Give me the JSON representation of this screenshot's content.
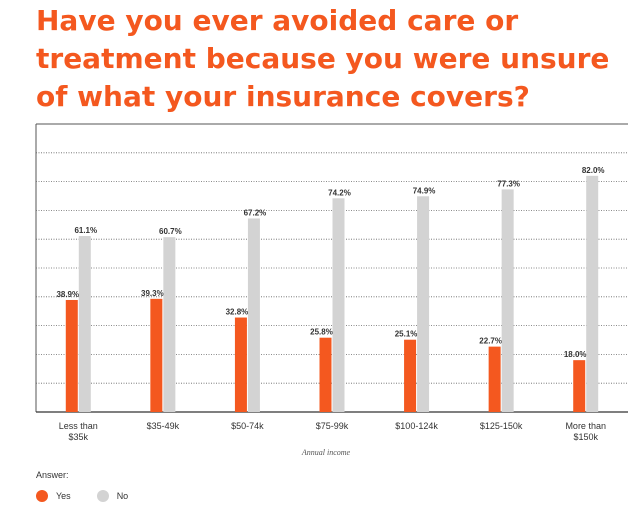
{
  "chart_data": {
    "type": "bar",
    "title": "Have you ever avoided care or treatment because you were unsure of what your insurance covers?",
    "xlabel": "Annual income",
    "ylabel": "",
    "ylim": [
      0,
      100
    ],
    "categories": [
      [
        "Less than",
        "$35k"
      ],
      [
        "$35-49k"
      ],
      [
        "$50-74k"
      ],
      [
        "$75-99k"
      ],
      [
        "$100-124k"
      ],
      [
        "$125-150k"
      ],
      [
        "More than",
        "$150k"
      ]
    ],
    "series": [
      {
        "name": "Yes",
        "color": "#f4581f",
        "values": [
          38.9,
          39.3,
          32.8,
          25.8,
          25.1,
          22.7,
          18.0
        ],
        "labels": [
          "38.9%",
          "39.3%",
          "32.8%",
          "25.8%",
          "25.1%",
          "22.7%",
          "18.0%"
        ]
      },
      {
        "name": "No",
        "color": "#d3d3d3",
        "values": [
          61.1,
          60.7,
          67.2,
          74.2,
          74.9,
          77.3,
          82.0
        ],
        "labels": [
          "61.1%",
          "60.7%",
          "67.2%",
          "74.2%",
          "74.9%",
          "77.3%",
          "82.0%"
        ]
      }
    ],
    "grid": true,
    "legend": {
      "title": "Answer:",
      "placement": "bottom-left"
    }
  }
}
